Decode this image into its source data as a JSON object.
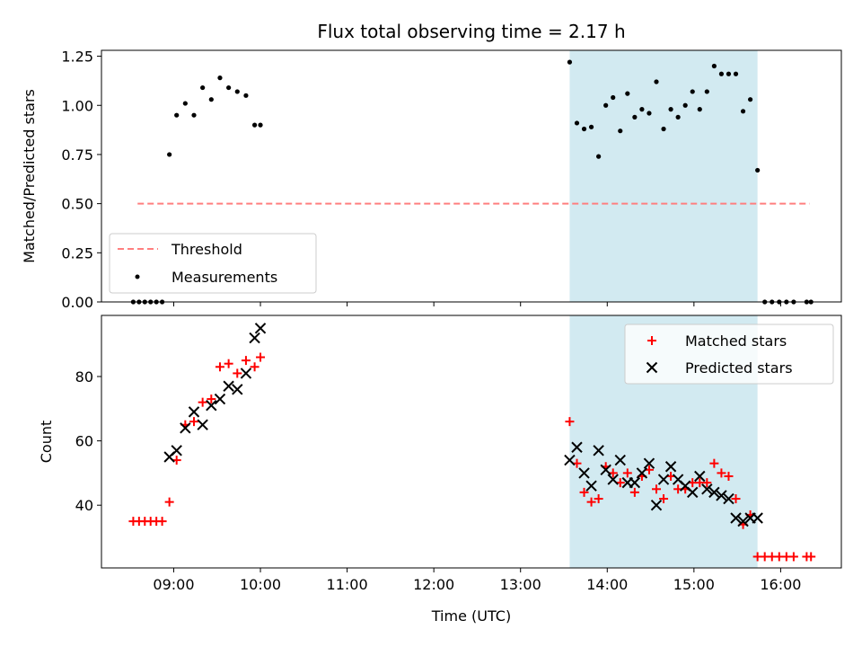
{
  "chart_data": [
    {
      "type": "scatter",
      "title": "Flux total observing time = 2.17 h",
      "xlabel": "",
      "ylabel": "Matched/Predicted stars",
      "xlim": [
        "08:10",
        "16:42"
      ],
      "ylim": [
        0,
        1.28
      ],
      "yticks": [
        "0.00",
        "0.25",
        "0.50",
        "0.75",
        "1.00",
        "1.25"
      ],
      "yticks_values": [
        0,
        0.25,
        0.5,
        0.75,
        1.0,
        1.25
      ],
      "xticks_values": [
        "09:00",
        "10:00",
        "11:00",
        "12:00",
        "13:00",
        "14:00",
        "15:00",
        "16:00"
      ],
      "shaded_interval": {
        "x": [
          "13:34",
          "15:44"
        ],
        "color": "#add8e6"
      },
      "legend": {
        "placement": "lower-left",
        "entries": [
          "Threshold",
          "Measurements"
        ]
      },
      "series": [
        {
          "name": "Threshold",
          "style": "dashed-line",
          "color": "#ff7f7f",
          "x": [
            "08:35",
            "16:20"
          ],
          "values": [
            0.5,
            0.5
          ]
        },
        {
          "name": "Measurements",
          "style": "dot",
          "color": "#000000",
          "x": [
            "08:32",
            "08:36",
            "08:40",
            "08:44",
            "08:48",
            "08:52",
            "08:57",
            "09:02",
            "09:08",
            "09:14",
            "09:20",
            "09:26",
            "09:32",
            "09:38",
            "09:44",
            "09:50",
            "09:56",
            "10:00",
            "13:34",
            "13:39",
            "13:44",
            "13:49",
            "13:54",
            "13:59",
            "14:04",
            "14:09",
            "14:14",
            "14:19",
            "14:24",
            "14:29",
            "14:34",
            "14:39",
            "14:44",
            "14:49",
            "14:54",
            "14:59",
            "15:04",
            "15:09",
            "15:14",
            "15:19",
            "15:24",
            "15:29",
            "15:34",
            "15:39",
            "15:44",
            "15:49",
            "15:54",
            "15:59",
            "16:04",
            "16:09",
            "16:18",
            "16:21"
          ],
          "values": [
            0,
            0,
            0,
            0,
            0,
            0,
            0.75,
            0.95,
            1.01,
            0.95,
            1.09,
            1.03,
            1.14,
            1.09,
            1.07,
            1.05,
            0.9,
            0.9,
            1.22,
            0.91,
            0.88,
            0.89,
            0.74,
            1.0,
            1.04,
            0.87,
            1.06,
            0.94,
            0.98,
            0.96,
            1.12,
            0.88,
            0.98,
            0.94,
            1.0,
            1.07,
            0.98,
            1.07,
            1.2,
            1.16,
            1.16,
            1.16,
            0.97,
            1.03,
            0.67,
            0,
            0,
            0,
            0,
            0,
            0,
            0
          ]
        }
      ]
    },
    {
      "type": "scatter",
      "title": "",
      "xlabel": "Time (UTC)",
      "ylabel": "Count",
      "xlim": [
        "08:10",
        "16:42"
      ],
      "ylim": [
        20.5,
        99
      ],
      "yticks": [
        "40",
        "60",
        "80"
      ],
      "yticks_values": [
        40,
        60,
        80
      ],
      "xticks": [
        "09:00",
        "10:00",
        "11:00",
        "12:00",
        "13:00",
        "14:00",
        "15:00",
        "16:00"
      ],
      "shaded_interval": {
        "x": [
          "13:34",
          "15:44"
        ],
        "color": "#add8e6"
      },
      "legend": {
        "placement": "top-right",
        "entries": [
          "Matched stars",
          "Predicted stars"
        ]
      },
      "series": [
        {
          "name": "Matched stars",
          "marker": "plus",
          "color": "#ff0000",
          "x": [
            "08:32",
            "08:36",
            "08:40",
            "08:44",
            "08:48",
            "08:52",
            "08:57",
            "09:02",
            "09:08",
            "09:14",
            "09:20",
            "09:26",
            "09:32",
            "09:38",
            "09:44",
            "09:50",
            "09:56",
            "10:00",
            "13:34",
            "13:39",
            "13:44",
            "13:49",
            "13:54",
            "13:59",
            "14:04",
            "14:09",
            "14:14",
            "14:19",
            "14:24",
            "14:29",
            "14:34",
            "14:39",
            "14:44",
            "14:49",
            "14:54",
            "14:59",
            "15:04",
            "15:09",
            "15:14",
            "15:19",
            "15:24",
            "15:29",
            "15:34",
            "15:39",
            "15:44",
            "15:49",
            "15:54",
            "15:59",
            "16:04",
            "16:09",
            "16:18",
            "16:21"
          ],
          "values": [
            35,
            35,
            35,
            35,
            35,
            35,
            41,
            54,
            65,
            66,
            72,
            73,
            83,
            84,
            81,
            85,
            83,
            86,
            66,
            53,
            44,
            41,
            42,
            52,
            50,
            47,
            50,
            44,
            49,
            51,
            45,
            42,
            49,
            45,
            45,
            47,
            47,
            47,
            53,
            50,
            49,
            42,
            34,
            37,
            24,
            24,
            24,
            24,
            24,
            24,
            24,
            24
          ]
        },
        {
          "name": "Predicted stars",
          "marker": "x",
          "color": "#000000",
          "x": [
            "08:57",
            "09:02",
            "09:08",
            "09:14",
            "09:20",
            "09:26",
            "09:32",
            "09:38",
            "09:44",
            "09:50",
            "09:56",
            "10:00",
            "13:34",
            "13:39",
            "13:44",
            "13:49",
            "13:54",
            "13:59",
            "14:04",
            "14:09",
            "14:14",
            "14:19",
            "14:24",
            "14:29",
            "14:34",
            "14:39",
            "14:44",
            "14:49",
            "14:54",
            "14:59",
            "15:04",
            "15:09",
            "15:14",
            "15:19",
            "15:24",
            "15:29",
            "15:34",
            "15:39",
            "15:44"
          ],
          "values": [
            55,
            57,
            64,
            69,
            65,
            71,
            73,
            77,
            76,
            81,
            92,
            95,
            54,
            58,
            50,
            46,
            57,
            51,
            48,
            54,
            47,
            47,
            50,
            53,
            40,
            48,
            52,
            48,
            46,
            44,
            49,
            45,
            44,
            43,
            42,
            36,
            35,
            36,
            36
          ]
        }
      ]
    }
  ]
}
